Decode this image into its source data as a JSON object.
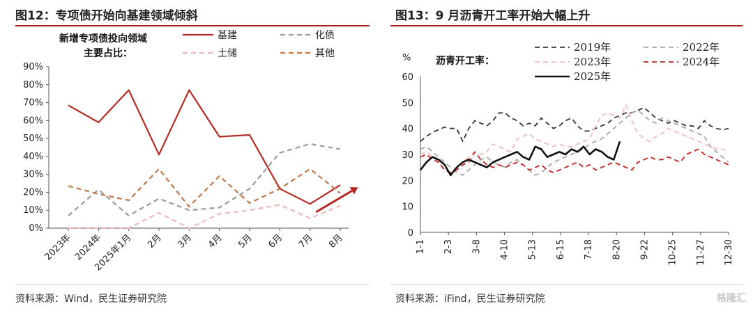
{
  "left": {
    "title": "图12：专项债开始向基建领域倾斜",
    "source": "资料来源：Wind，民生证券研究院",
    "annotation_line1": "新增专项债投向领域",
    "annotation_line2": "主要占比："
  },
  "right": {
    "title": "图13：9 月沥青开工率开始大幅上升",
    "source": "资料来源：iFind，民生证券研究院",
    "annotation": "沥青开工率：",
    "unit": "%"
  },
  "watermark": "格隆汇",
  "colors": {
    "accent": "#a61b1b"
  },
  "chart_data": [
    {
      "type": "line",
      "categories": [
        "2023年",
        "2024年",
        "2025年1月",
        "2月",
        "3月",
        "4月",
        "5月",
        "6月",
        "7月",
        "8月"
      ],
      "ylim": [
        0,
        90
      ],
      "yticks": [
        "0%",
        "10%",
        "20%",
        "30%",
        "40%",
        "50%",
        "60%",
        "70%",
        "80%",
        "90%"
      ],
      "series": [
        {
          "name": "基建",
          "color": "#b52a22",
          "dash": "solid",
          "values": [
            68.5,
            59,
            77,
            41,
            77,
            51,
            52,
            22,
            13.5,
            24
          ]
        },
        {
          "name": "化债",
          "color": "#9a9a9a",
          "dash": "dashed",
          "values": [
            7,
            21.5,
            7,
            16.5,
            10,
            11.5,
            22,
            42,
            47,
            44
          ]
        },
        {
          "name": "土储",
          "color": "#f0b8b8",
          "dash": "dashed",
          "values": [
            0,
            0,
            0,
            8.5,
            0,
            8,
            10,
            13,
            5.5,
            12.5
          ]
        },
        {
          "name": "其他",
          "color": "#c0784a",
          "dash": "dashed",
          "values": [
            23.5,
            19,
            15.5,
            33,
            12,
            29,
            14,
            22,
            33,
            19.5
          ]
        }
      ],
      "trend_arrow": {
        "from": [
          8.2,
          9
        ],
        "to": [
          9.6,
          22
        ],
        "color": "#b52a22"
      }
    },
    {
      "type": "line",
      "xticks": [
        "1-1",
        "2-3",
        "3-8",
        "4-10",
        "5-13",
        "6-15",
        "7-18",
        "8-20",
        "9-22",
        "10-25",
        "11-27",
        "12-30"
      ],
      "xrange": [
        0,
        52
      ],
      "ylim": [
        0,
        60
      ],
      "yticks": [
        "0",
        "10",
        "20",
        "30",
        "40",
        "50",
        "60"
      ],
      "series": [
        {
          "name": "2019年",
          "color": "#333333",
          "dash": "dashed",
          "width": 1.8,
          "values": [
            35,
            37,
            38.5,
            39.5,
            40.5,
            40,
            40,
            35,
            40,
            43,
            42,
            41,
            43,
            46,
            46,
            44,
            43,
            41,
            42,
            41,
            44,
            42,
            40,
            41,
            43,
            44,
            41,
            39,
            39,
            40,
            41,
            42,
            44,
            45,
            46,
            46,
            47,
            48,
            46,
            44,
            43,
            42,
            43,
            42,
            41,
            41,
            40,
            43,
            41,
            40,
            39.5,
            40
          ]
        },
        {
          "name": "2022年",
          "color": "#a8a8a8",
          "dash": "dashed",
          "width": 1.8,
          "values": [
            32,
            33,
            31,
            29,
            27,
            25,
            23,
            22,
            24,
            26,
            28,
            29,
            27,
            26,
            25,
            27,
            28,
            26,
            24,
            22,
            23,
            25,
            27,
            28,
            29,
            30,
            31,
            32,
            34,
            35,
            36,
            38,
            40,
            42,
            44,
            46,
            47,
            45,
            43,
            42,
            44,
            43,
            42,
            41,
            40,
            39,
            38,
            37,
            33,
            31,
            29,
            27
          ]
        },
        {
          "name": "2023年",
          "color": "#f0bcbc",
          "dash": "dashed",
          "width": 1.8,
          "values": [
            30,
            31,
            29,
            27,
            24,
            23,
            25,
            27,
            29,
            31,
            30,
            31,
            34,
            33,
            32,
            31,
            36,
            37,
            38,
            36,
            35,
            34,
            33,
            34,
            33,
            33,
            34,
            35,
            36,
            41,
            45,
            46,
            45,
            44,
            49,
            43,
            38,
            36,
            35,
            37,
            38,
            40,
            39,
            38,
            37,
            36,
            35,
            34,
            33,
            32,
            32,
            31
          ]
        },
        {
          "name": "2024年",
          "color": "#c81e1e",
          "dash": "dashed",
          "width": 1.8,
          "values": [
            29,
            30,
            28,
            27,
            24,
            23,
            24,
            26,
            27,
            31,
            28,
            26,
            25,
            26,
            25,
            26,
            27,
            26,
            24,
            25,
            26,
            24,
            23,
            24,
            25,
            26,
            27,
            25,
            26,
            24,
            25,
            26,
            27,
            26,
            25,
            24,
            27,
            28,
            29,
            28,
            28,
            29,
            28,
            27,
            30,
            31,
            32,
            30,
            29,
            28,
            27,
            26
          ]
        },
        {
          "name": "2025年",
          "color": "#111111",
          "dash": "solid",
          "width": 2.6,
          "values": [
            24,
            27,
            29,
            28,
            26,
            22,
            25,
            27,
            28,
            27,
            26,
            25,
            27,
            28,
            29,
            30,
            31,
            29,
            28,
            33,
            32,
            29,
            30,
            31,
            30,
            32,
            31,
            33,
            30,
            32,
            31,
            29,
            28,
            35
          ]
        }
      ]
    }
  ]
}
